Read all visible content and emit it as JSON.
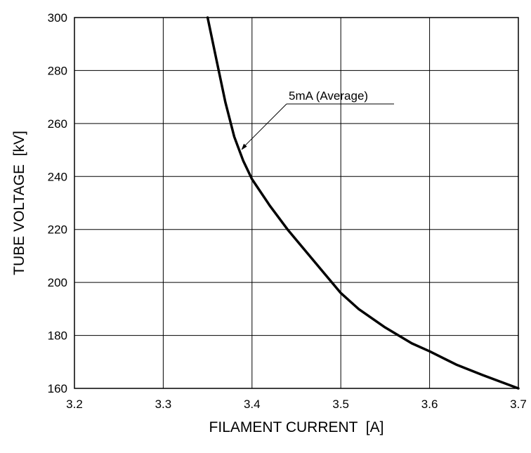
{
  "chart_data": {
    "type": "line",
    "title": "",
    "xlabel": "FILAMENT CURRENT  [A]",
    "ylabel": "TUBE VOLTAGE  [kV]",
    "xlim": [
      3.2,
      3.7
    ],
    "ylim": [
      160,
      300
    ],
    "x_ticks": [
      3.2,
      3.3,
      3.4,
      3.5,
      3.6,
      3.7
    ],
    "x_tick_labels": [
      "3.2",
      "3.3",
      "3.4",
      "3.5",
      "3.6",
      "3.7"
    ],
    "y_ticks": [
      160,
      180,
      200,
      220,
      240,
      260,
      280,
      300
    ],
    "y_tick_labels": [
      "160",
      "180",
      "200",
      "220",
      "240",
      "260",
      "280",
      "300"
    ],
    "grid": true,
    "series": [
      {
        "color": "#000000",
        "x": [
          3.35,
          3.36,
          3.37,
          3.38,
          3.39,
          3.4,
          3.42,
          3.44,
          3.46,
          3.48,
          3.5,
          3.52,
          3.55,
          3.58,
          3.6,
          3.63,
          3.66,
          3.7
        ],
        "y": [
          300,
          284,
          268,
          255,
          246,
          239,
          229,
          220,
          212,
          204,
          196,
          190,
          183,
          177,
          174,
          169,
          165,
          160
        ]
      }
    ],
    "annotations": [
      {
        "text": "5mA (Average)",
        "x": 3.388,
        "y": 250
      }
    ]
  }
}
